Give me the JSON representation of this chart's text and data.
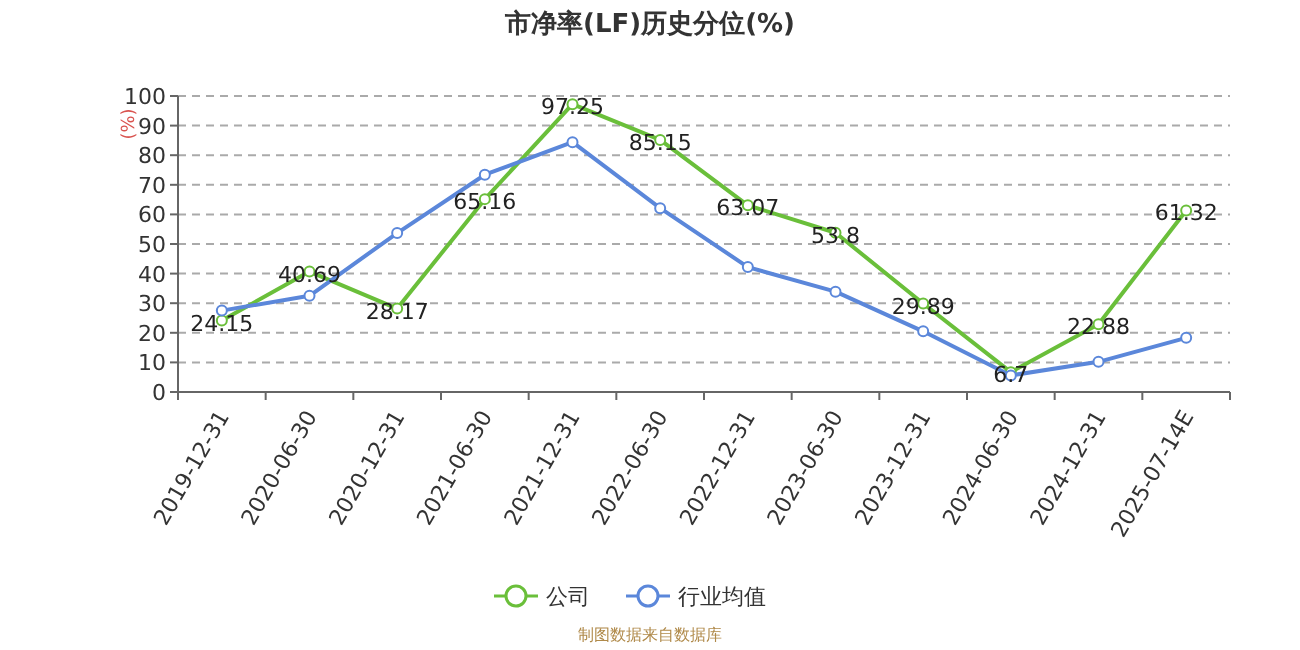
{
  "chart_data": {
    "type": "line",
    "title": "市净率(LF)历史分位(%)",
    "ylabel": "(%)",
    "categories": [
      "2019-12-31",
      "2020-06-30",
      "2020-12-31",
      "2021-06-30",
      "2021-12-31",
      "2022-06-30",
      "2022-12-31",
      "2023-06-30",
      "2023-12-31",
      "2024-06-30",
      "2024-12-31",
      "2025-07-14E"
    ],
    "series": [
      {
        "name": "公司",
        "color": "#6abf3a",
        "values": [
          24.15,
          40.69,
          28.17,
          65.16,
          97.25,
          85.15,
          63.07,
          53.8,
          29.89,
          6.7,
          22.88,
          61.32
        ],
        "data_labels": true
      },
      {
        "name": "行业均值",
        "color": "#5b87da",
        "values": [
          27.5,
          32.5,
          53.7,
          73.4,
          84.4,
          62.1,
          42.2,
          33.9,
          20.5,
          5.6,
          10.2,
          18.3
        ]
      }
    ],
    "ylim": [
      0,
      100
    ],
    "yticks": [
      0,
      10,
      20,
      30,
      40,
      50,
      60,
      70,
      80,
      90,
      100
    ],
    "grid": "y",
    "legend": "bottom",
    "marker": "circle",
    "line_style": "solid",
    "annotations": [
      "制图数据来自数据库"
    ]
  }
}
